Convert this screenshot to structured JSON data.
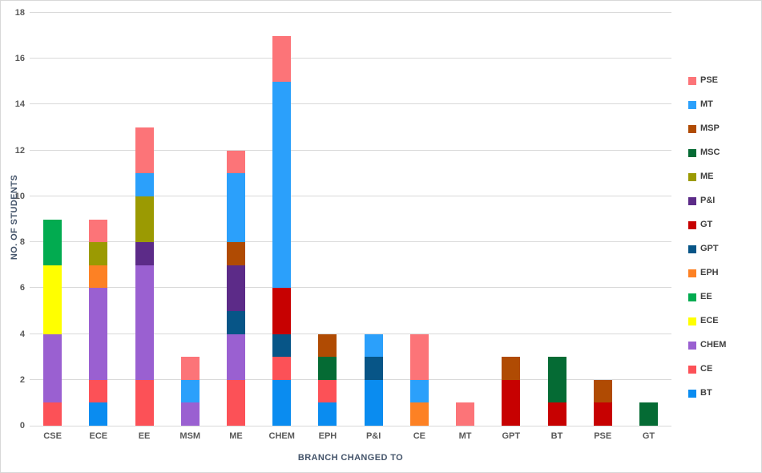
{
  "chart_data": {
    "type": "bar",
    "stacked": true,
    "xlabel": "BRANCH CHANGED TO",
    "ylabel": "NO. OF STUDENTS",
    "ylim": [
      0,
      18
    ],
    "yticks": [
      0,
      2,
      4,
      6,
      8,
      10,
      12,
      14,
      16,
      18
    ],
    "grid": "horizontal",
    "legend_position": "right",
    "categories": [
      "CSE",
      "ECE",
      "EE",
      "MSM",
      "ME",
      "CHEM",
      "EPH",
      "P&I",
      "CE",
      "MT",
      "GPT",
      "BT",
      "PSE",
      "GT"
    ],
    "series": [
      {
        "name": "BT",
        "color": "#0A8CF0",
        "values": [
          0,
          1,
          0,
          0,
          0,
          2,
          1,
          2,
          0,
          0,
          0,
          0,
          0,
          0
        ]
      },
      {
        "name": "CE",
        "color": "#FC5157",
        "values": [
          1,
          1,
          2,
          0,
          2,
          1,
          1,
          0,
          0,
          0,
          0,
          0,
          0,
          0
        ]
      },
      {
        "name": "CHEM",
        "color": "#9A60D1",
        "values": [
          3,
          4,
          5,
          1,
          2,
          0,
          0,
          0,
          0,
          0,
          0,
          0,
          0,
          0
        ]
      },
      {
        "name": "ECE",
        "color": "#FFFF00",
        "values": [
          3,
          0,
          0,
          0,
          0,
          0,
          0,
          0,
          0,
          0,
          0,
          0,
          0,
          0
        ]
      },
      {
        "name": "EE",
        "color": "#02AB50",
        "values": [
          2,
          0,
          0,
          0,
          0,
          0,
          0,
          0,
          0,
          0,
          0,
          0,
          0,
          0
        ]
      },
      {
        "name": "EPH",
        "color": "#FD8124",
        "values": [
          0,
          1,
          0,
          0,
          0,
          0,
          0,
          0,
          1,
          0,
          0,
          0,
          0,
          0
        ]
      },
      {
        "name": "GPT",
        "color": "#075587",
        "values": [
          0,
          0,
          0,
          0,
          1,
          1,
          0,
          1,
          0,
          0,
          0,
          0,
          0,
          0
        ]
      },
      {
        "name": "GT",
        "color": "#C70101",
        "values": [
          0,
          0,
          0,
          0,
          0,
          2,
          0,
          0,
          0,
          0,
          2,
          1,
          1,
          0
        ]
      },
      {
        "name": "P&I",
        "color": "#5C2B88",
        "values": [
          0,
          0,
          1,
          0,
          2,
          0,
          0,
          0,
          0,
          0,
          0,
          0,
          0,
          0
        ]
      },
      {
        "name": "ME",
        "color": "#9B9A02",
        "values": [
          0,
          1,
          2,
          0,
          0,
          0,
          0,
          0,
          0,
          0,
          0,
          0,
          0,
          0
        ]
      },
      {
        "name": "MSC",
        "color": "#056B34",
        "values": [
          0,
          0,
          0,
          0,
          0,
          0,
          1,
          0,
          0,
          0,
          0,
          2,
          0,
          1
        ]
      },
      {
        "name": "MSP",
        "color": "#B04B03",
        "values": [
          0,
          0,
          0,
          0,
          1,
          0,
          1,
          0,
          0,
          0,
          1,
          0,
          1,
          0
        ]
      },
      {
        "name": "MT",
        "color": "#2BA0FB",
        "values": [
          0,
          0,
          1,
          1,
          3,
          9,
          0,
          1,
          1,
          0,
          0,
          0,
          0,
          0
        ]
      },
      {
        "name": "PSE",
        "color": "#FC7478",
        "values": [
          0,
          1,
          2,
          1,
          1,
          2,
          0,
          0,
          2,
          1,
          0,
          0,
          0,
          0
        ]
      }
    ],
    "legend": [
      "PSE",
      "MT",
      "MSP",
      "MSC",
      "ME",
      "P&I",
      "GT",
      "GPT",
      "EPH",
      "EE",
      "ECE",
      "CHEM",
      "CE",
      "BT"
    ],
    "totals": {
      "CSE": 9,
      "ECE": 9,
      "EE": 13,
      "MSM": 3,
      "ME": 12,
      "CHEM": 17,
      "EPH": 4,
      "P&I": 4,
      "CE": 4,
      "MT": 1,
      "GPT": 3,
      "BT": 3,
      "PSE": 2,
      "GT": 1
    }
  }
}
